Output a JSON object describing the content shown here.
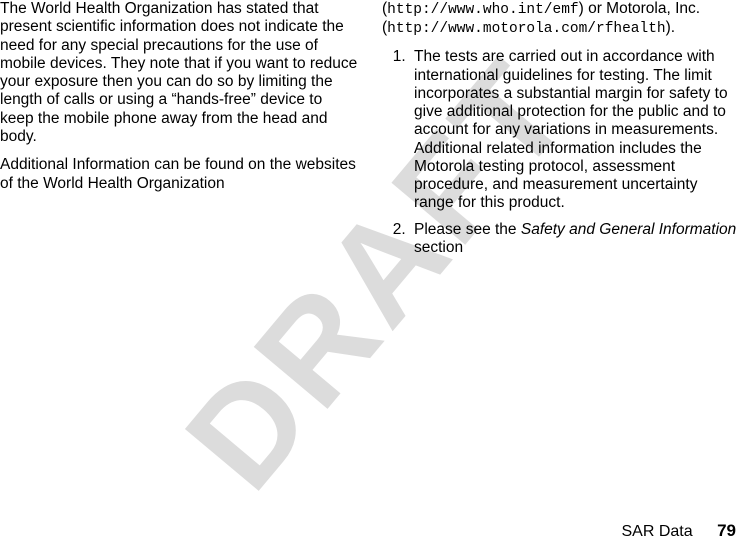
{
  "watermark": "DRAFT",
  "left": {
    "p1": "The World Health Organization has stated that present scientific information does not indicate the need for any special precautions for the use of mobile devices. They note that if you want to reduce your exposure then you can do so by limiting the length of calls or using a “hands-free” device to keep the mobile phone away from the head and body.",
    "p2": "Additional Information can be found on the websites of the World Health Organization"
  },
  "right": {
    "line1_pre": "(",
    "url1": "http://www.who.int/emf",
    "line1_mid": ") or Motorola, Inc. (",
    "url2": "http://www.motorola.com/rfhealth",
    "line1_post": ").",
    "li1": "The tests are carried out in accordance with international guidelines for testing. The limit incorporates a substantial margin for safety to give additional protection for the public and to account for any variations in measurements. Additional related information includes the Motorola testing protocol, assessment procedure, and measurement uncertainty range for this product.",
    "li2_pre": "Please see the ",
    "li2_italic": "Safety and General Information",
    "li2_post": " section"
  },
  "footer": {
    "label": "SAR Data",
    "page": "79"
  }
}
